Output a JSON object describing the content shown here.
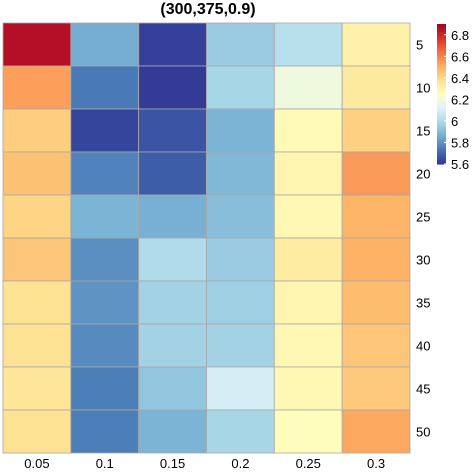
{
  "chart_data": {
    "type": "heatmap",
    "title": "(300,375,0.9)",
    "x_categories": [
      "0.05",
      "0.1",
      "0.15",
      "0.2",
      "0.25",
      "0.3"
    ],
    "y_categories": [
      "5",
      "10",
      "15",
      "20",
      "25",
      "30",
      "35",
      "40",
      "45",
      "50"
    ],
    "values": [
      [
        6.86,
        5.86,
        5.62,
        5.95,
        6.02,
        6.31
      ],
      [
        6.54,
        5.74,
        5.61,
        5.98,
        6.18,
        6.34
      ],
      [
        6.43,
        5.63,
        5.66,
        5.88,
        6.27,
        6.42
      ],
      [
        6.46,
        5.76,
        5.68,
        5.89,
        6.29,
        6.55
      ],
      [
        6.41,
        5.88,
        5.87,
        5.91,
        6.28,
        6.49
      ],
      [
        6.45,
        5.79,
        6.0,
        5.95,
        6.33,
        6.5
      ],
      [
        6.37,
        5.8,
        5.97,
        5.96,
        6.29,
        6.47
      ],
      [
        6.37,
        5.78,
        5.97,
        5.97,
        6.28,
        6.45
      ],
      [
        6.36,
        5.75,
        5.93,
        6.09,
        6.28,
        6.44
      ],
      [
        6.37,
        5.75,
        5.88,
        5.98,
        6.26,
        6.52
      ]
    ],
    "colorbar": {
      "range": [
        5.6,
        6.9
      ],
      "ticks": [
        "5.6",
        "5.8",
        "6",
        "6.2",
        "6.4",
        "6.6",
        "6.8"
      ]
    },
    "palette": [
      "#313695",
      "#4575b4",
      "#74add1",
      "#abd9e9",
      "#e0f3f8",
      "#ffffbf",
      "#fee090",
      "#fdae61",
      "#f46d43",
      "#d73027",
      "#a50026"
    ],
    "grid": true,
    "legend_position": "right"
  }
}
